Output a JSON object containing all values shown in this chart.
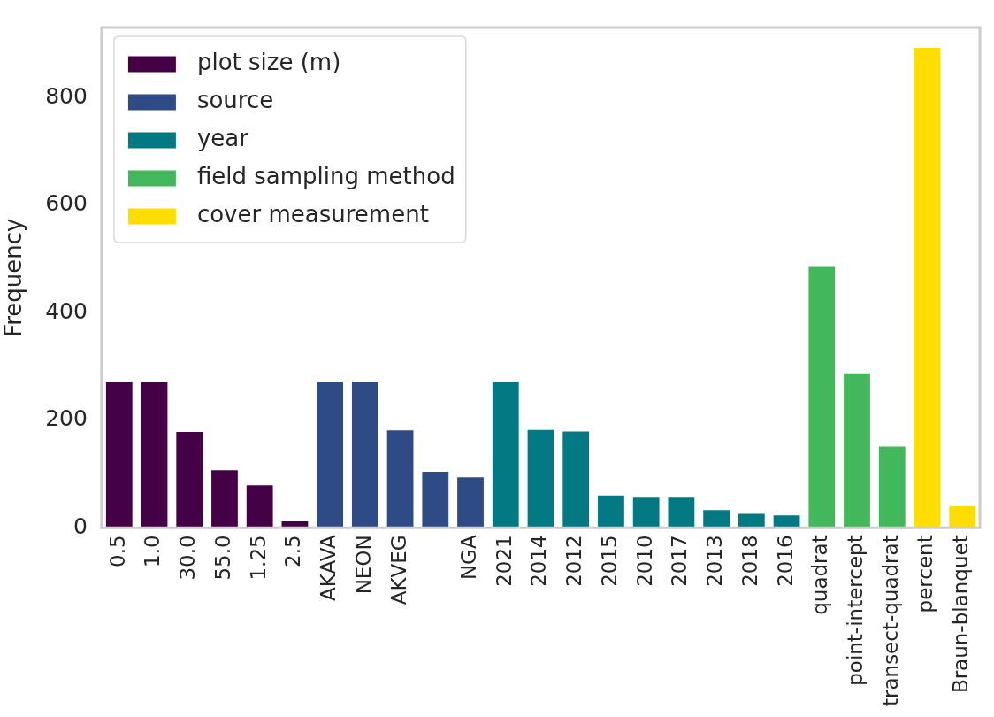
{
  "chart_data": {
    "type": "bar",
    "ylabel": "Frequency",
    "categories": [
      "0.5",
      "1.0",
      "30.0",
      "55.0",
      "1.25",
      "2.5",
      "AKAVA",
      "NEON",
      "AKVEG",
      null,
      "NGA",
      "2021",
      "2014",
      "2012",
      "2015",
      "2010",
      "2017",
      "2013",
      "2018",
      "2016",
      "quadrat",
      "point-intercept",
      "transect-quadrat",
      "percent",
      "Braun-blanquet"
    ],
    "series": [
      {
        "name": "plot size (m)",
        "color": "#440145",
        "values": [
          272,
          272,
          178,
          107,
          79,
          12,
          null,
          null,
          null,
          null,
          null,
          null,
          null,
          null,
          null,
          null,
          null,
          null,
          null,
          null,
          null,
          null,
          null,
          null,
          null
        ]
      },
      {
        "name": "source",
        "color": "#2e4b85",
        "values": [
          null,
          null,
          null,
          null,
          null,
          null,
          272,
          272,
          181,
          104,
          94,
          null,
          null,
          null,
          null,
          null,
          null,
          null,
          null,
          null,
          null,
          null,
          null,
          null,
          null
        ]
      },
      {
        "name": "year",
        "color": "#037a83",
        "values": [
          null,
          null,
          null,
          null,
          null,
          null,
          null,
          null,
          null,
          null,
          null,
          272,
          182,
          179,
          60,
          56,
          56,
          33,
          26,
          23,
          null,
          null,
          null,
          null,
          null
        ]
      },
      {
        "name": "field sampling method",
        "color": "#43b75b",
        "values": [
          null,
          null,
          null,
          null,
          null,
          null,
          null,
          null,
          null,
          null,
          null,
          null,
          null,
          null,
          null,
          null,
          null,
          null,
          null,
          null,
          485,
          287,
          151,
          null,
          null
        ]
      },
      {
        "name": "cover measurement",
        "color": "#fedd00",
        "values": [
          null,
          null,
          null,
          null,
          null,
          null,
          null,
          null,
          null,
          null,
          null,
          null,
          null,
          null,
          null,
          null,
          null,
          null,
          null,
          null,
          null,
          null,
          null,
          892,
          40
        ]
      }
    ],
    "ylim": [
      0,
      930
    ],
    "yticks": [
      0,
      200,
      400,
      600,
      800
    ],
    "grid": false,
    "legend": "top left"
  }
}
